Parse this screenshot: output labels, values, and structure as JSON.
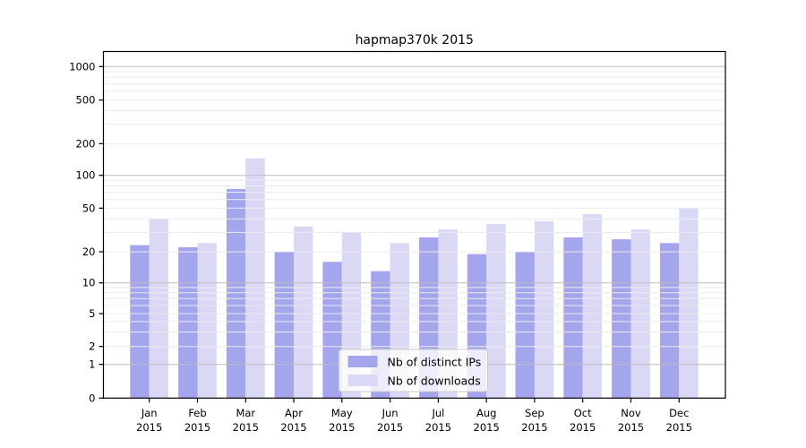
{
  "title": "hapmap370k 2015",
  "chart_data": {
    "type": "bar",
    "title": "hapmap370k 2015",
    "categories": [
      "Jan 2015",
      "Feb 2015",
      "Mar 2015",
      "Apr 2015",
      "May 2015",
      "Jun 2015",
      "Jul 2015",
      "Aug 2015",
      "Sep 2015",
      "Oct 2015",
      "Nov 2015",
      "Dec 2015"
    ],
    "series": [
      {
        "name": "Nb of distinct IPs",
        "color": "#a5a5ee",
        "values": [
          23,
          22,
          75,
          20,
          16,
          13,
          27,
          19,
          20,
          27,
          26,
          24
        ]
      },
      {
        "name": "Nb of downloads",
        "color": "#d9d9f6",
        "values": [
          40,
          24,
          145,
          34,
          30,
          24,
          32,
          36,
          38,
          44,
          32,
          50
        ]
      }
    ],
    "yscale": "symlog",
    "y_ticks": [
      0,
      1,
      2,
      5,
      10,
      20,
      50,
      100,
      200,
      500,
      1000
    ],
    "y_minor_ticks": [
      3,
      4,
      6,
      7,
      8,
      9,
      30,
      40,
      60,
      70,
      80,
      90,
      300,
      400,
      600,
      700,
      800,
      900
    ],
    "ylim": [
      0,
      1400
    ],
    "xlabel": "",
    "ylabel": "",
    "grid": true,
    "legend_position": "lower center"
  },
  "colors": {
    "background": "#ffffff",
    "frame": "#000000",
    "grid_major_decade": "#bdbdbd",
    "grid_minor": "#ececec",
    "legend_border": "#cccccc",
    "legend_background": "#ffffff",
    "text": "#000000"
  }
}
